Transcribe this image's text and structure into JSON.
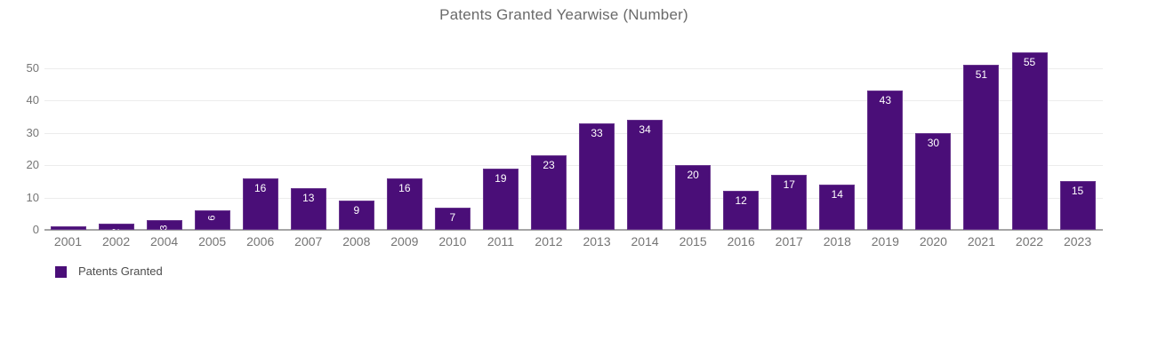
{
  "chart_data": {
    "type": "bar",
    "title": "Patents Granted Yearwise (Number)",
    "categories": [
      "2001",
      "2002",
      "2004",
      "2005",
      "2006",
      "2007",
      "2008",
      "2009",
      "2010",
      "2011",
      "2012",
      "2013",
      "2014",
      "2015",
      "2016",
      "2017",
      "2018",
      "2019",
      "2020",
      "2021",
      "2022",
      "2023"
    ],
    "series": [
      {
        "name": "Patents Granted",
        "values": [
          1,
          2,
          3,
          6,
          16,
          13,
          9,
          16,
          7,
          19,
          23,
          33,
          34,
          20,
          12,
          17,
          14,
          43,
          30,
          51,
          55,
          15
        ]
      }
    ],
    "xlabel": "",
    "ylabel": "",
    "ylim": [
      0,
      57
    ],
    "y_ticks": [
      0,
      10,
      20,
      30,
      40,
      50
    ],
    "grid": "horizontal",
    "data_labels": "inside-end, white, rotated vertical on short bars",
    "legend": {
      "position": "bottom-left",
      "entries": [
        "Patents Granted"
      ]
    },
    "colors": {
      "bar": "#4A0E78",
      "title_text": "#6a6a6a",
      "axis_text": "#757575",
      "gridline": "#ececec",
      "axis_line": "#a6a6a6",
      "data_label_text": "#ffffff",
      "legend_text": "#4d4d4d",
      "background": "#ffffff"
    }
  }
}
